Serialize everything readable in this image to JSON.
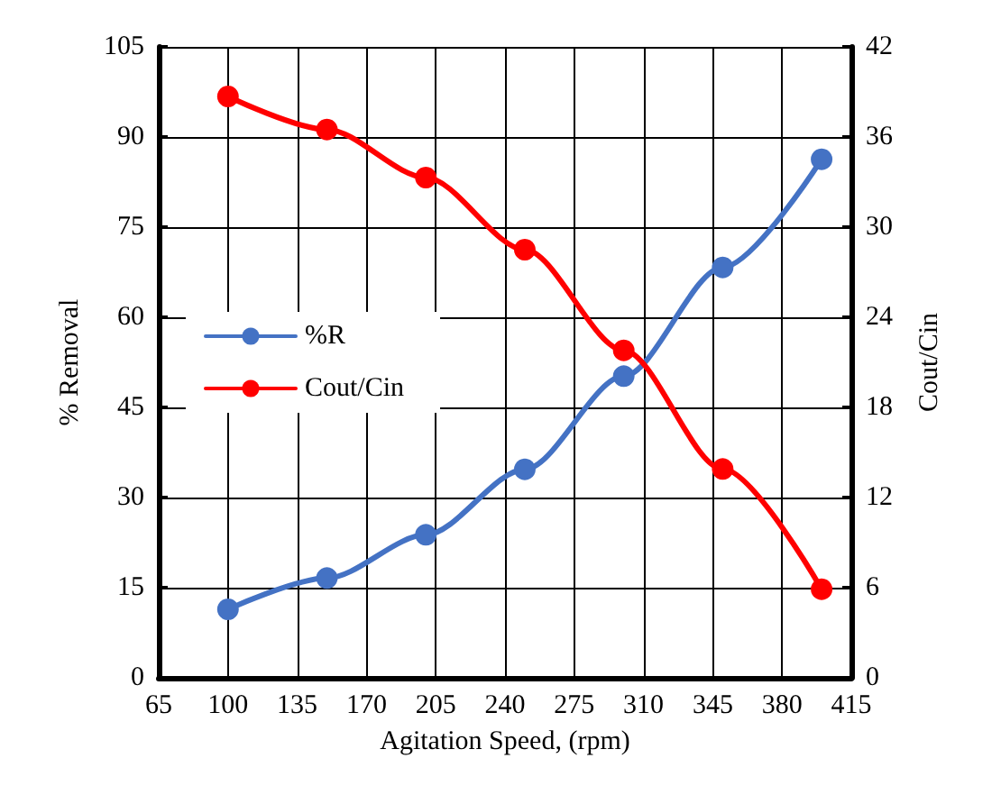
{
  "chart_data": {
    "type": "line",
    "xlabel": "Agitation Speed, (rpm)",
    "ylabel": "% Removal",
    "y2label": "Cout/Cin",
    "x": [
      100,
      150,
      200,
      250,
      300,
      350,
      400
    ],
    "series": [
      {
        "name": "%R",
        "color": "#4472c4",
        "values": [
          11.4,
          16.6,
          23.8,
          34.7,
          50.2,
          68.3,
          86.3
        ]
      },
      {
        "name": "Cout/Cin",
        "color": "#ff0000",
        "axis": "y2",
        "values": [
          38.7,
          36.5,
          33.3,
          28.5,
          21.8,
          13.9,
          5.9
        ]
      }
    ],
    "xlim": [
      65,
      415
    ],
    "xticks": [
      65,
      100,
      135,
      170,
      205,
      240,
      275,
      310,
      345,
      380,
      415
    ],
    "ylim": [
      0,
      105
    ],
    "yticks": [
      0,
      15,
      30,
      45,
      60,
      75,
      90,
      105
    ],
    "y2lim": [
      0,
      42
    ],
    "y2ticks": [
      0,
      6,
      12,
      18,
      24,
      30,
      36,
      42
    ],
    "grid": true,
    "legend": "left",
    "marker": "circle",
    "line_style": "solid"
  }
}
